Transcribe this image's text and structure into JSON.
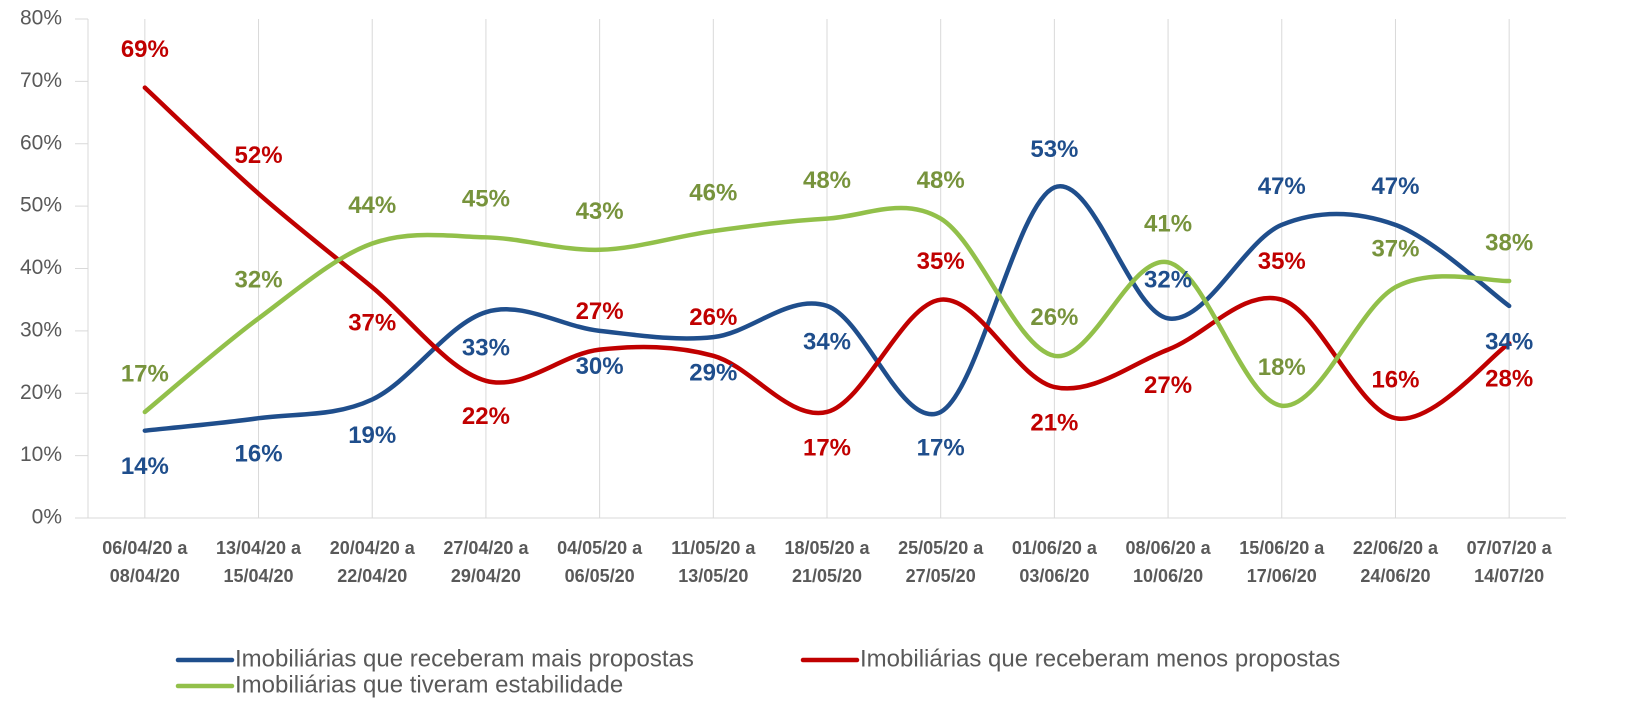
{
  "chart_data": {
    "type": "line",
    "categories": [
      "06/04/20 a\n08/04/20",
      "13/04/20 a\n15/04/20",
      "20/04/20 a\n22/04/20",
      "27/04/20 a\n29/04/20",
      "04/05/20 a\n06/05/20",
      "11/05/20 a\n13/05/20",
      "18/05/20 a\n21/05/20",
      "25/05/20 a\n27/05/20",
      "01/06/20 a\n03/06/20",
      "08/06/20 a\n10/06/20",
      "15/06/20 a\n17/06/20",
      "22/06/20 a\n24/06/20",
      "07/07/20 a\n14/07/20"
    ],
    "series": [
      {
        "name": "Imobiliárias que receberam mais propostas",
        "color": "#1f4e8c",
        "label_color": "#1f4e8c",
        "values": [
          14,
          16,
          19,
          33,
          30,
          29,
          34,
          17,
          53,
          32,
          47,
          47,
          34
        ],
        "value_labels": [
          "14%",
          "16%",
          "19%",
          "33%",
          "30%",
          "29%",
          "34%",
          "17%",
          "53%",
          "32%",
          "47%",
          "47%",
          "34%"
        ]
      },
      {
        "name": "Imobiliárias que receberam menos propostas",
        "color": "#c00000",
        "label_color": "#c00000",
        "values": [
          69,
          52,
          37,
          22,
          27,
          26,
          17,
          35,
          21,
          27,
          35,
          16,
          28
        ],
        "value_labels": [
          "69%",
          "52%",
          "37%",
          "22%",
          "27%",
          "26%",
          "17%",
          "35%",
          "21%",
          "27%",
          "35%",
          "16%",
          "28%"
        ]
      },
      {
        "name": "Imobiliárias que tiveram estabilidade",
        "color": "#92c04a",
        "label_color": "#77933c",
        "values": [
          17,
          32,
          44,
          45,
          43,
          46,
          48,
          48,
          26,
          41,
          18,
          37,
          38
        ],
        "value_labels": [
          "17%",
          "32%",
          "44%",
          "45%",
          "43%",
          "46%",
          "48%",
          "48%",
          "26%",
          "41%",
          "18%",
          "37%",
          "38%"
        ]
      }
    ],
    "ylim": [
      0,
      80
    ],
    "yticks": [
      {
        "value": 0,
        "label": "0%"
      },
      {
        "value": 10,
        "label": "10%"
      },
      {
        "value": 20,
        "label": "20%"
      },
      {
        "value": 30,
        "label": "30%"
      },
      {
        "value": 40,
        "label": "40%"
      },
      {
        "value": 50,
        "label": "50%"
      },
      {
        "value": 60,
        "label": "60%"
      },
      {
        "value": 70,
        "label": "70%"
      },
      {
        "value": 80,
        "label": "80%"
      }
    ],
    "grid": "x",
    "smooth": true,
    "legend": "bottom"
  }
}
